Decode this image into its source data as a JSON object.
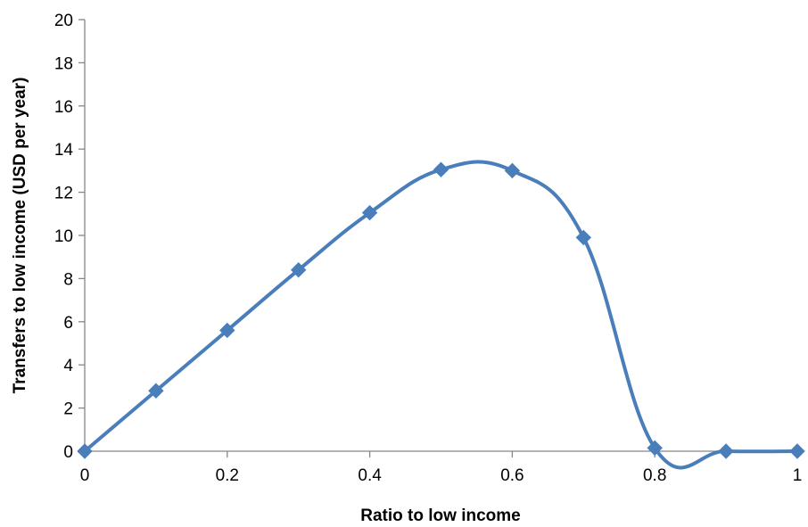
{
  "chart_data": {
    "type": "line",
    "title": "",
    "xlabel": "Ratio to low income",
    "ylabel": "Transfers to low income (USD per year)",
    "xlim": [
      0,
      1
    ],
    "ylim": [
      0,
      20
    ],
    "x_ticks": [
      0,
      0.2,
      0.4,
      0.6,
      0.8,
      1
    ],
    "x_tick_labels": [
      "0",
      "0.2",
      "0.4",
      "0.6",
      "0.8",
      "1"
    ],
    "y_ticks": [
      0,
      2,
      4,
      6,
      8,
      10,
      12,
      14,
      16,
      18,
      20
    ],
    "y_tick_labels": [
      "0",
      "2",
      "4",
      "6",
      "8",
      "10",
      "12",
      "14",
      "16",
      "18",
      "20"
    ],
    "grid": false,
    "legend": "none",
    "smoothed": true,
    "marker": "diamond",
    "series_color": "#4a7ebb",
    "series": [
      {
        "x": [
          0,
          0.1,
          0.2,
          0.3,
          0.4,
          0.5,
          0.6,
          0.7,
          0.8,
          0.9,
          1
        ],
        "values": [
          0,
          2.8,
          5.6,
          8.4,
          11.05,
          13.05,
          13.0,
          9.9,
          0.15,
          0,
          0
        ]
      }
    ]
  }
}
